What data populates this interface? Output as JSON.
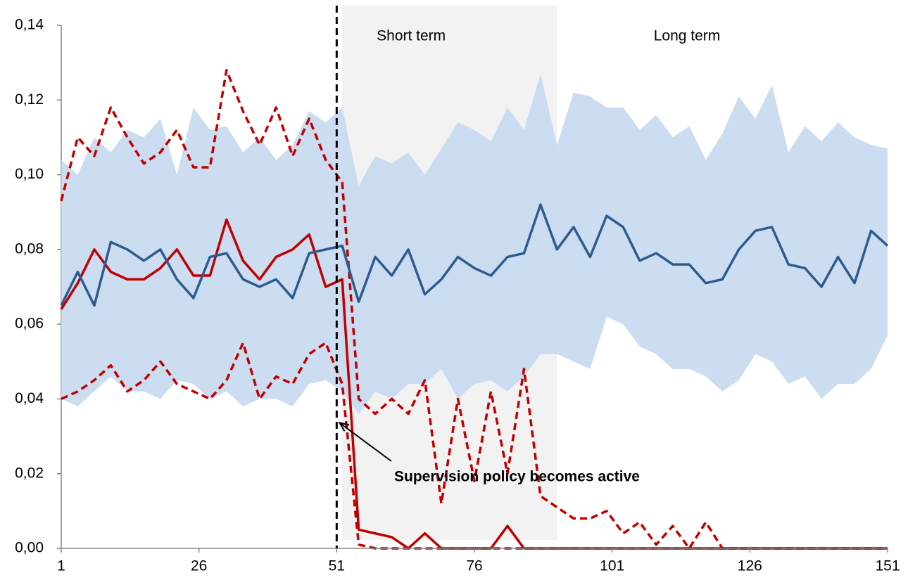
{
  "chart_data": {
    "type": "line",
    "x": [
      1,
      4,
      7,
      10,
      13,
      16,
      19,
      22,
      25,
      28,
      31,
      34,
      37,
      40,
      43,
      46,
      49,
      52,
      55,
      58,
      61,
      64,
      67,
      70,
      73,
      76,
      79,
      82,
      85,
      88,
      91,
      94,
      97,
      100,
      103,
      106,
      109,
      112,
      115,
      118,
      121,
      124,
      127,
      130,
      133,
      136,
      139,
      142,
      145,
      148,
      151
    ],
    "series": [
      {
        "kind": "band",
        "color": "#c6d8ef",
        "upper": [
          0.104,
          0.1,
          0.11,
          0.106,
          0.112,
          0.11,
          0.115,
          0.1,
          0.118,
          0.112,
          0.113,
          0.106,
          0.11,
          0.104,
          0.108,
          0.117,
          0.114,
          0.118,
          0.097,
          0.105,
          0.103,
          0.106,
          0.1,
          0.107,
          0.114,
          0.112,
          0.109,
          0.118,
          0.112,
          0.127,
          0.108,
          0.122,
          0.121,
          0.118,
          0.118,
          0.112,
          0.116,
          0.11,
          0.113,
          0.104,
          0.111,
          0.121,
          0.115,
          0.124,
          0.106,
          0.113,
          0.109,
          0.114,
          0.11,
          0.108,
          0.107
        ],
        "lower": [
          0.04,
          0.038,
          0.042,
          0.046,
          0.042,
          0.042,
          0.04,
          0.045,
          0.044,
          0.04,
          0.042,
          0.038,
          0.04,
          0.04,
          0.038,
          0.044,
          0.045,
          0.042,
          0.036,
          0.042,
          0.04,
          0.044,
          0.044,
          0.048,
          0.04,
          0.044,
          0.045,
          0.042,
          0.046,
          0.052,
          0.052,
          0.05,
          0.048,
          0.062,
          0.06,
          0.054,
          0.052,
          0.048,
          0.048,
          0.046,
          0.042,
          0.045,
          0.052,
          0.05,
          0.044,
          0.046,
          0.04,
          0.044,
          0.044,
          0.048,
          0.057
        ]
      },
      {
        "kind": "line",
        "color": "#c00000",
        "dashed": true,
        "values": [
          0.093,
          0.11,
          0.105,
          0.118,
          0.11,
          0.103,
          0.106,
          0.112,
          0.102,
          0.102,
          0.128,
          0.117,
          0.108,
          0.118,
          0.105,
          0.115,
          0.104,
          0.098,
          0.04,
          0.036,
          0.04,
          0.036,
          0.045,
          0.012,
          0.04,
          0.018,
          0.042,
          0.02,
          0.048,
          0.014,
          0.011,
          0.008,
          0.008,
          0.01,
          0.004,
          0.007,
          0.001,
          0.006,
          0,
          0.007,
          0,
          0,
          0,
          0,
          0,
          0,
          0,
          0,
          0,
          0,
          0
        ]
      },
      {
        "kind": "line",
        "color": "#c00000",
        "dashed": true,
        "values": [
          0.04,
          0.042,
          0.045,
          0.049,
          0.042,
          0.045,
          0.05,
          0.044,
          0.042,
          0.04,
          0.045,
          0.055,
          0.04,
          0.046,
          0.044,
          0.052,
          0.055,
          0.044,
          0.001,
          0,
          0,
          0,
          0,
          0,
          0,
          0,
          0,
          0,
          0,
          0,
          0,
          0,
          0,
          0,
          0,
          0,
          0,
          0,
          0,
          0,
          0,
          0,
          0,
          0,
          0,
          0,
          0,
          0,
          0,
          0,
          0
        ]
      },
      {
        "kind": "line",
        "color": "#c00000",
        "dashed": false,
        "values": [
          0.064,
          0.071,
          0.08,
          0.074,
          0.072,
          0.072,
          0.075,
          0.08,
          0.073,
          0.073,
          0.088,
          0.077,
          0.072,
          0.078,
          0.08,
          0.084,
          0.07,
          0.072,
          0.005,
          0.004,
          0.003,
          0,
          0.004,
          0,
          0,
          0,
          0,
          0.006,
          0,
          0,
          0,
          0,
          0,
          0,
          0,
          0,
          0,
          0,
          0,
          0,
          0,
          0,
          0,
          0,
          0,
          0,
          0,
          0,
          0,
          0,
          0
        ]
      },
      {
        "kind": "line",
        "color": "#2e5b8f",
        "dashed": false,
        "values": [
          0.065,
          0.074,
          0.065,
          0.082,
          0.08,
          0.077,
          0.08,
          0.072,
          0.067,
          0.078,
          0.079,
          0.072,
          0.07,
          0.072,
          0.067,
          0.079,
          0.08,
          0.081,
          0.066,
          0.078,
          0.073,
          0.08,
          0.068,
          0.072,
          0.078,
          0.075,
          0.073,
          0.078,
          0.079,
          0.092,
          0.08,
          0.086,
          0.078,
          0.089,
          0.086,
          0.077,
          0.079,
          0.076,
          0.076,
          0.071,
          0.072,
          0.08,
          0.085,
          0.086,
          0.076,
          0.075,
          0.07,
          0.078,
          0.071,
          0.085,
          0.081
        ]
      }
    ],
    "xlim": [
      1,
      151
    ],
    "xticks": [
      1,
      26,
      51,
      76,
      101,
      126,
      151
    ],
    "ylim": [
      0,
      0.14
    ],
    "yticks": [
      {
        "value": 0,
        "label": "0,00"
      },
      {
        "value": 0.02,
        "label": "0,02"
      },
      {
        "value": 0.04,
        "label": "0,04"
      },
      {
        "value": 0.06,
        "label": "0,06"
      },
      {
        "value": 0.08,
        "label": "0,08"
      },
      {
        "value": 0.1,
        "label": "0,10"
      },
      {
        "value": 0.12,
        "label": "0,12"
      },
      {
        "value": 0.14,
        "label": "0,14"
      }
    ],
    "highlight": {
      "label": "Short term",
      "range": [
        52,
        91
      ],
      "color": "#f2f2f2"
    },
    "region_label": "Long term",
    "vline": 51,
    "annotation": {
      "text": "Supervision policy becomes active",
      "x": 51,
      "y": 0.034
    }
  }
}
